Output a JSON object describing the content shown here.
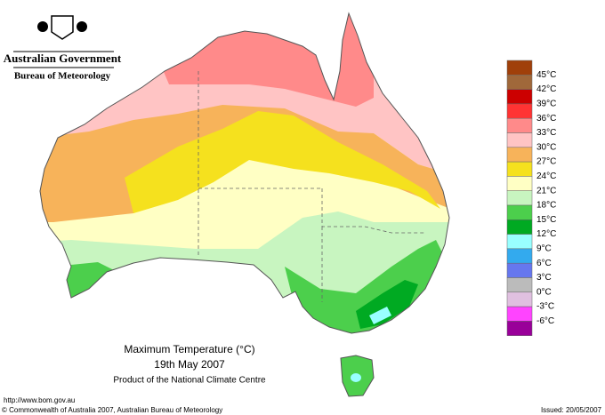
{
  "header": {
    "agency": "Australian Government",
    "bureau": "Bureau of Meteorology"
  },
  "map": {
    "title": "Maximum Temperature (°C)",
    "date": "19th May 2007",
    "product": "Product of the National Climate Centre"
  },
  "legend": {
    "colors": [
      "#a0400a",
      "#a0683a",
      "#cc0000",
      "#ff3333",
      "#ff8a8a",
      "#ffc4c4",
      "#f7b35a",
      "#f5e11e",
      "#ffffc4",
      "#c8f5c0",
      "#4ccf4c",
      "#00aa22",
      "#99ffff",
      "#33aaee",
      "#6677ee",
      "#bbbbbb",
      "#e0c0e0",
      "#ff44ff",
      "#990099"
    ],
    "labels": [
      "45°C",
      "42°C",
      "39°C",
      "36°C",
      "33°C",
      "30°C",
      "27°C",
      "24°C",
      "21°C",
      "18°C",
      "15°C",
      "12°C",
      "9°C",
      "6°C",
      "3°C",
      "0°C",
      "-3°C",
      "-6°C"
    ]
  },
  "footer": {
    "url": "http://www.bom.gov.au",
    "copyright": "© Commonwealth of Australia 2007, Australian Bureau of Meteorology",
    "issued": "Issued: 20/05/2007"
  }
}
